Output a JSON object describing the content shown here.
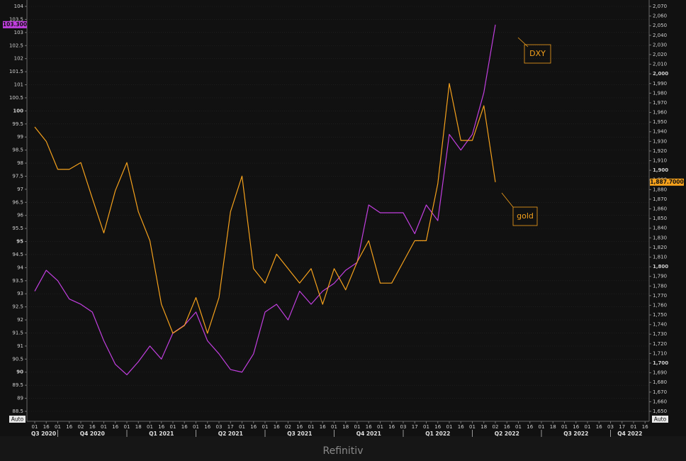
{
  "chart_data": {
    "type": "line",
    "categories": [
      "01",
      "16",
      "01",
      "16",
      "02",
      "16",
      "01",
      "16",
      "01",
      "18",
      "01",
      "16",
      "01",
      "16",
      "01",
      "16",
      "03",
      "17",
      "01",
      "16",
      "01",
      "16",
      "02",
      "16",
      "01",
      "16",
      "01",
      "18",
      "01",
      "16",
      "01",
      "16",
      "03",
      "17",
      "01",
      "16",
      "01",
      "16",
      "01",
      "18",
      "02",
      "16",
      "01",
      "16",
      "01",
      "18",
      "01",
      "16",
      "01",
      "16",
      "03",
      "17",
      "01",
      "16"
    ],
    "quarters": [
      "Q3 2020",
      "Q4 2020",
      "Q1 2021",
      "Q2 2021",
      "Q3 2021",
      "Q4 2021",
      "Q1 2022",
      "Q2 2022",
      "Q3 2022",
      "Q4 2022"
    ],
    "series": [
      {
        "name": "DXY",
        "color": "#c23fe0",
        "axis": "y",
        "values": [
          93.1,
          93.9,
          93.5,
          92.8,
          92.6,
          92.3,
          91.2,
          90.3,
          89.9,
          90.4,
          91.0,
          90.5,
          91.5,
          91.8,
          92.3,
          91.2,
          90.7,
          90.1,
          90.0,
          90.7,
          92.3,
          92.6,
          92.0,
          93.1,
          92.6,
          93.1,
          93.4,
          93.9,
          94.2,
          96.4,
          96.1,
          96.1,
          96.1,
          95.3,
          96.4,
          95.8,
          99.1,
          98.5,
          99.1,
          100.7,
          103.3,
          null,
          null,
          null,
          null,
          null,
          null,
          null,
          null,
          null,
          null,
          null,
          null,
          null
        ],
        "value_labels": [
          null,
          null,
          null,
          null,
          null,
          null,
          null,
          null,
          null,
          null,
          null,
          null,
          null,
          null,
          null,
          null,
          null,
          null,
          null,
          null,
          null,
          null,
          null,
          null,
          null,
          null,
          null,
          null,
          null,
          null,
          null,
          null,
          null,
          null,
          null,
          null,
          null,
          null,
          null,
          null,
          "103.300",
          null,
          null,
          null,
          null,
          null,
          null,
          null,
          null,
          null,
          null,
          null,
          null,
          null
        ]
      },
      {
        "name": "gold",
        "color": "#f5a11c",
        "axis": "y2",
        "values": [
          1945,
          1930,
          1901,
          1901,
          1908,
          1871,
          1835,
          1879,
          1908,
          1857,
          1827,
          1761,
          1731,
          1739,
          1768,
          1731,
          1768,
          1857,
          1894,
          1798,
          1783,
          1813,
          1798,
          1783,
          1798,
          1761,
          1798,
          1776,
          1805,
          1827,
          1783,
          1783,
          1805,
          1827,
          1827,
          1886,
          1990,
          1931,
          1931,
          1967,
          1887.7,
          null,
          null,
          null,
          null,
          null,
          null,
          null,
          null,
          null,
          null,
          null,
          null,
          null
        ],
        "value_labels": [
          null,
          null,
          null,
          null,
          null,
          null,
          null,
          null,
          null,
          null,
          null,
          null,
          null,
          null,
          null,
          null,
          null,
          null,
          null,
          null,
          null,
          null,
          null,
          null,
          null,
          null,
          null,
          null,
          null,
          null,
          null,
          null,
          null,
          null,
          null,
          null,
          null,
          null,
          null,
          null,
          "1,887.7000",
          null,
          null,
          null,
          null,
          null,
          null,
          null,
          null,
          null,
          null,
          null,
          null,
          null
        ]
      }
    ],
    "ylim": [
      88.5,
      104
    ],
    "yticks": [
      88.5,
      89,
      89.5,
      90,
      90.5,
      91,
      91.5,
      92,
      92.5,
      93,
      93.5,
      94,
      94.5,
      95,
      95.5,
      96,
      96.5,
      97,
      97.5,
      98,
      98.5,
      99,
      99.5,
      100,
      100.5,
      101,
      101.5,
      102,
      102.5,
      103,
      103.5,
      104
    ],
    "y2lim": [
      1650,
      2070
    ],
    "y2ticks": [
      {
        "value": 1650,
        "label": "1,650"
      },
      {
        "value": 1660,
        "label": "1,660"
      },
      {
        "value": 1670,
        "label": "1,670"
      },
      {
        "value": 1680,
        "label": "1,680"
      },
      {
        "value": 1690,
        "label": "1,690"
      },
      {
        "value": 1700,
        "label": "1,700"
      },
      {
        "value": 1710,
        "label": "1,710"
      },
      {
        "value": 1720,
        "label": "1,720"
      },
      {
        "value": 1730,
        "label": "1,730"
      },
      {
        "value": 1740,
        "label": "1,740"
      },
      {
        "value": 1750,
        "label": "1,750"
      },
      {
        "value": 1760,
        "label": "1,760"
      },
      {
        "value": 1770,
        "label": "1,770"
      },
      {
        "value": 1780,
        "label": "1,780"
      },
      {
        "value": 1790,
        "label": "1,790"
      },
      {
        "value": 1800,
        "label": "1,800"
      },
      {
        "value": 1810,
        "label": "1,810"
      },
      {
        "value": 1820,
        "label": "1,820"
      },
      {
        "value": 1830,
        "label": "1,830"
      },
      {
        "value": 1840,
        "label": "1,840"
      },
      {
        "value": 1850,
        "label": "1,850"
      },
      {
        "value": 1860,
        "label": "1,860"
      },
      {
        "value": 1870,
        "label": "1,870"
      },
      {
        "value": 1880,
        "label": "1,880"
      },
      {
        "value": 1890,
        "label": "1,890"
      },
      {
        "value": 1900,
        "label": "1,900"
      },
      {
        "value": 1910,
        "label": "1,910"
      },
      {
        "value": 1920,
        "label": "1,920"
      },
      {
        "value": 1930,
        "label": "1,930"
      },
      {
        "value": 1940,
        "label": "1,940"
      },
      {
        "value": 1950,
        "label": "1,950"
      },
      {
        "value": 1960,
        "label": "1,960"
      },
      {
        "value": 1970,
        "label": "1,970"
      },
      {
        "value": 1980,
        "label": "1,980"
      },
      {
        "value": 1990,
        "label": "1,990"
      },
      {
        "value": 2000,
        "label": "2,000"
      },
      {
        "value": 2010,
        "label": "2,010"
      },
      {
        "value": 2020,
        "label": "2,020"
      },
      {
        "value": 2030,
        "label": "2,030"
      },
      {
        "value": 2040,
        "label": "2,040"
      },
      {
        "value": 2050,
        "label": "2,050"
      },
      {
        "value": 2060,
        "label": "2,060"
      },
      {
        "value": 2070,
        "label": "2,070"
      }
    ],
    "grid": true,
    "annotations": [
      "DXY",
      "gold"
    ],
    "scale_buttons": [
      "Auto",
      "Auto"
    ]
  },
  "footer": "Refinitiv"
}
